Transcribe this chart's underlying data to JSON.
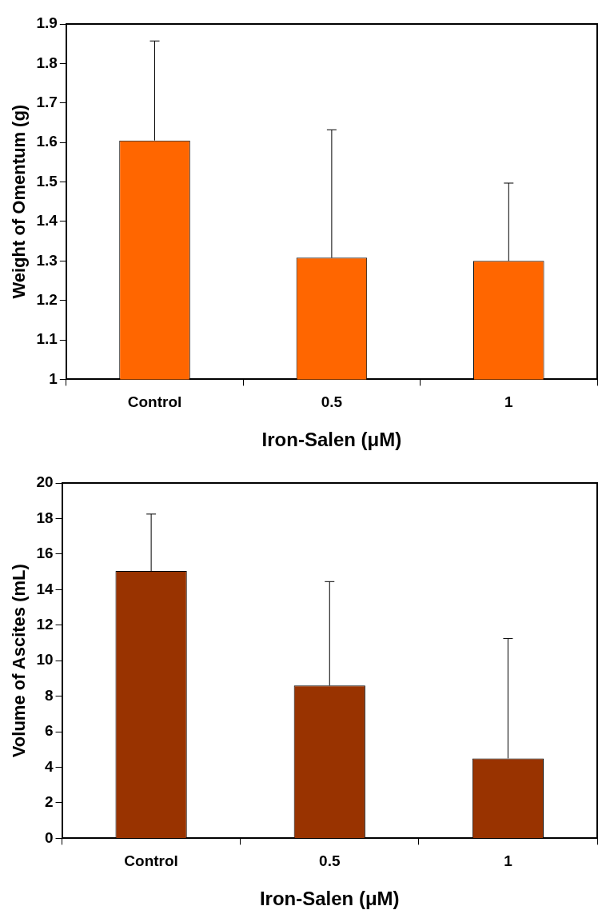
{
  "chart_data": [
    {
      "type": "bar",
      "xlabel": "Iron-Salen (μM)",
      "ylabel": "Weight of Omentum (g)",
      "categories": [
        "Control",
        "0.5",
        "1"
      ],
      "values": [
        1.605,
        1.308,
        1.3
      ],
      "color": "#ff6600",
      "errors": [
        [
          1.605,
          1.857
        ],
        [
          1.308,
          1.632
        ],
        [
          1.3,
          1.497
        ]
      ],
      "ylim": [
        1,
        1.9
      ],
      "yticks": [
        1,
        1.1,
        1.2,
        1.3,
        1.4,
        1.5,
        1.6,
        1.7,
        1.8,
        1.9
      ],
      "grid": false
    },
    {
      "type": "bar",
      "xlabel": "Iron-Salen (μM)",
      "ylabel": "Volume of Ascites (mL)",
      "categories": [
        "Control",
        "0.5",
        "1"
      ],
      "values": [
        15.05,
        8.6,
        4.5
      ],
      "color": "#993300",
      "errors": [
        [
          15.05,
          18.25
        ],
        [
          8.6,
          14.45
        ],
        [
          4.5,
          11.25
        ]
      ],
      "ylim": [
        0,
        20
      ],
      "yticks": [
        0,
        2,
        4,
        6,
        8,
        10,
        12,
        14,
        16,
        18,
        20
      ],
      "grid": false
    }
  ]
}
